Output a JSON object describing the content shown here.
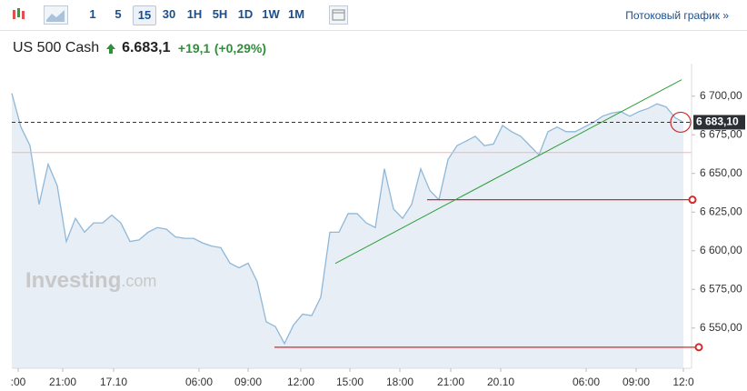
{
  "toolbar": {
    "intervals": [
      "1",
      "5",
      "15",
      "30",
      "1H",
      "5H",
      "1D",
      "1W",
      "1M"
    ],
    "active": "15",
    "stream_link": "Потоковый график »"
  },
  "header": {
    "instrument": "US 500 Cash",
    "price": "6.683,1",
    "change": "+19,1",
    "change_pct": "(+0,29%)"
  },
  "watermark": {
    "brand": "Investing",
    "suffix": ".com"
  },
  "chart_data": {
    "type": "area",
    "color": "#8fb8d8",
    "fill": "#e7eef6",
    "x": [
      0,
      1,
      2,
      3,
      4,
      5,
      6,
      7,
      8,
      9,
      10,
      11,
      12,
      13,
      14,
      15,
      16,
      17,
      18,
      19,
      20,
      21,
      22,
      23,
      24,
      25,
      26,
      27,
      28,
      29,
      30,
      31,
      32,
      33,
      34,
      35,
      36,
      37,
      38,
      39,
      40,
      41,
      42,
      43,
      44,
      45,
      46,
      47,
      48,
      49,
      50,
      51,
      52,
      53,
      54,
      55,
      56,
      57,
      58,
      59,
      60,
      61,
      62,
      63,
      64,
      65,
      66,
      67,
      68,
      69,
      70,
      71,
      72,
      73,
      73.9
    ],
    "values": [
      6701.8,
      6680,
      6668,
      6630,
      6656,
      6642,
      6606,
      6621,
      6612,
      6618,
      6618,
      6623,
      6618,
      6606,
      6607,
      6612,
      6615,
      6614,
      6609,
      6608,
      6608,
      6605,
      6603,
      6602,
      6592,
      6589,
      6592,
      6580,
      6554,
      6551,
      6540,
      6552,
      6559,
      6558,
      6570,
      6612,
      6612,
      6624,
      6624,
      6618,
      6615,
      6653,
      6627,
      6621,
      6630,
      6653,
      6639,
      6633,
      6659,
      6668,
      6671,
      6674,
      6668,
      6669,
      6681,
      6677,
      6674,
      6668,
      6662,
      6677,
      6680,
      6677,
      6677,
      6680,
      6683,
      6687,
      6689,
      6690,
      6687,
      6690,
      6692,
      6695,
      6693,
      6686,
      6683.1
    ],
    "xlim": [
      0,
      74
    ],
    "ylim": [
      6524,
      6721
    ],
    "xticks": [
      {
        "value": 0.7,
        "label": ":00"
      },
      {
        "value": 5.6,
        "label": "21:00"
      },
      {
        "value": 11.2,
        "label": "17.10"
      },
      {
        "value": 20.6,
        "label": "06:00"
      },
      {
        "value": 26,
        "label": "09:00"
      },
      {
        "value": 31.8,
        "label": "12:00"
      },
      {
        "value": 37.2,
        "label": "15:00"
      },
      {
        "value": 42.7,
        "label": "18:00"
      },
      {
        "value": 48.3,
        "label": "21:00"
      },
      {
        "value": 53.8,
        "label": "20.10"
      },
      {
        "value": 63.2,
        "label": "06:00"
      },
      {
        "value": 68.7,
        "label": "09:00"
      },
      {
        "value": 73.9,
        "label": "12:0"
      }
    ],
    "yticks": [
      {
        "value": 6550,
        "label": "6 550,00"
      },
      {
        "value": 6575,
        "label": "6 575,00"
      },
      {
        "value": 6600,
        "label": "6 600,00"
      },
      {
        "value": 6625,
        "label": "6 625,00"
      },
      {
        "value": 6650,
        "label": "6 650,00"
      },
      {
        "value": 6675,
        "label": "6 675,00"
      },
      {
        "value": 6700,
        "label": "6 700,00"
      }
    ],
    "last_price": {
      "value": 6683.1,
      "label": "6 683,10"
    },
    "reference_line": {
      "value": 6663.5,
      "color": "#f4b4b4"
    },
    "hlines": [
      {
        "value": 6633,
        "x": [
          45.7,
          74.9
        ],
        "color": "#d42a2a"
      },
      {
        "value": 6537.6,
        "x": [
          28.9,
          75.6
        ],
        "color": "#d42a2a"
      }
    ],
    "trendline": {
      "x": [
        35.6,
        73.7
      ],
      "values": [
        6591.8,
        6710.6
      ],
      "color": "#2e9e3a"
    }
  }
}
